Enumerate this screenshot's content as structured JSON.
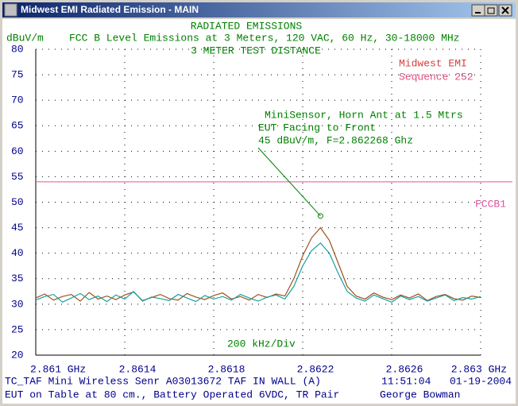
{
  "window": {
    "title": "Midwest EMI Radiated Emission - MAIN"
  },
  "chart_data": {
    "type": "line",
    "title": "RADIATED EMISSIONS",
    "subtitle": "FCC B Level Emissions at 3 Meters, 120 VAC, 60 Hz, 30-18000 MHz",
    "subtitle2": "3 METER TEST DISTANCE",
    "ylabel": "dBuV/m",
    "xlabel": "200 kHz/Div",
    "company": [
      "Midwest EMI",
      "Sequence 252"
    ],
    "ylim": [
      20,
      80
    ],
    "yticks": [
      20,
      25,
      30,
      35,
      40,
      45,
      50,
      55,
      60,
      65,
      70,
      75,
      80
    ],
    "xlim": [
      2.861,
      2.863
    ],
    "xticks": [
      {
        "value": 2.861,
        "label": "2.861 GHz"
      },
      2.8614,
      2.8618,
      2.8622,
      2.8626,
      {
        "value": 2.863,
        "label": "2.863 GHz"
      }
    ],
    "grid": true,
    "x": [
      2.861,
      2.86104,
      2.86108,
      2.86112,
      2.86116,
      2.8612,
      2.86124,
      2.86128,
      2.86132,
      2.86136,
      2.8614,
      2.86144,
      2.86148,
      2.86152,
      2.86156,
      2.8616,
      2.86164,
      2.86168,
      2.86172,
      2.86176,
      2.8618,
      2.86184,
      2.86188,
      2.86192,
      2.86196,
      2.862,
      2.86204,
      2.86208,
      2.86212,
      2.86216,
      2.8622,
      2.86224,
      2.86228,
      2.86232,
      2.86236,
      2.8624,
      2.86244,
      2.86248,
      2.86252,
      2.86256,
      2.8626,
      2.86264,
      2.86268,
      2.86272,
      2.86276,
      2.8628,
      2.86284,
      2.86288,
      2.86292,
      2.86296,
      2.863
    ],
    "series": [
      {
        "color": "#a0501a",
        "values": [
          31.2,
          32.0,
          30.8,
          31.5,
          31.9,
          30.6,
          32.3,
          31.0,
          31.6,
          30.9,
          31.8,
          32.4,
          30.7,
          31.3,
          31.9,
          31.1,
          30.8,
          32.1,
          31.4,
          30.9,
          31.7,
          32.2,
          31.0,
          31.5,
          30.8,
          31.9,
          31.3,
          32.0,
          31.6,
          35.0,
          39.5,
          43.0,
          45.0,
          42.5,
          38.0,
          33.5,
          31.6,
          31.0,
          32.2,
          31.4,
          30.9,
          31.8,
          31.2,
          32.0,
          30.7,
          31.5,
          31.9,
          31.1,
          30.8,
          31.6,
          31.3
        ]
      },
      {
        "color": "#18a0a0",
        "values": [
          30.8,
          31.5,
          31.9,
          30.4,
          31.2,
          32.1,
          30.9,
          31.6,
          30.5,
          31.8,
          31.0,
          32.5,
          30.6,
          31.4,
          31.1,
          30.7,
          31.9,
          31.2,
          30.5,
          31.7,
          31.0,
          31.5,
          30.8,
          31.9,
          31.2,
          30.6,
          31.4,
          31.8,
          31.0,
          33.5,
          37.5,
          40.5,
          42.0,
          40.0,
          36.0,
          32.5,
          31.2,
          30.6,
          31.8,
          31.1,
          30.4,
          31.6,
          30.9,
          31.5,
          30.6,
          31.2,
          31.8,
          30.7,
          31.3,
          31.0,
          31.5
        ]
      }
    ],
    "limit": {
      "name": "FCCB1",
      "value": 54,
      "color": "#e050a0"
    },
    "annotation": {
      "lines": [
        "MiniSensor, Horn Ant at 1.5 Mtrs",
        "EUT Facing to Front",
        "45 dBuV/m, F=2.862268 Ghz"
      ],
      "x": 2.86228,
      "y": 47.3
    }
  },
  "footer": [
    [
      "TC_TAF Mini Wireless Senr  A03013672 TAF IN WALL (A)",
      "11:51:04",
      "01-19-2004"
    ],
    [
      "EUT on Table at 80 cm., Battery Operated 6VDC, TR Pair",
      "George Bowman"
    ]
  ]
}
